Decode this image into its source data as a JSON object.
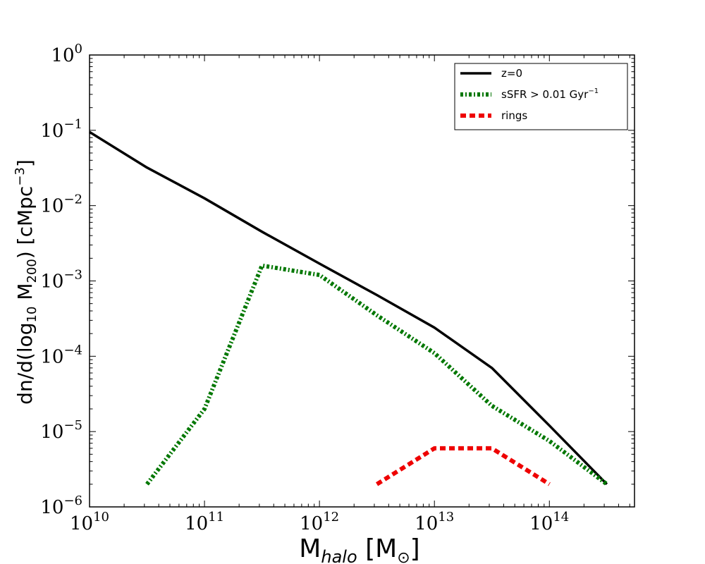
{
  "chart_data": {
    "type": "line",
    "title": "",
    "xscale": "log",
    "yscale": "log",
    "xlim": [
      10000000000.0,
      550000000000000.0
    ],
    "ylim": [
      1e-06,
      1
    ],
    "xlabel": {
      "main": "M",
      "sub": "halo",
      "rest": " [M",
      "sym": "⊙",
      "close": "]"
    },
    "ylabel": {
      "pre": "dn/d(log",
      "sub1": "10",
      "mid": " M",
      "sub2": "200",
      "post": ") [cMpc",
      "sup": "−3",
      "close": "]"
    },
    "xticks": [
      {
        "value": 10000000000.0,
        "base": "10",
        "exp": "10"
      },
      {
        "value": 100000000000.0,
        "base": "10",
        "exp": "11"
      },
      {
        "value": 1000000000000.0,
        "base": "10",
        "exp": "12"
      },
      {
        "value": 10000000000000.0,
        "base": "10",
        "exp": "13"
      },
      {
        "value": 100000000000000.0,
        "base": "10",
        "exp": "14"
      }
    ],
    "yticks": [
      {
        "value": 1e-06,
        "base": "10",
        "exp": "−6"
      },
      {
        "value": 1e-05,
        "base": "10",
        "exp": "−5"
      },
      {
        "value": 0.0001,
        "base": "10",
        "exp": "−4"
      },
      {
        "value": 0.001,
        "base": "10",
        "exp": "−3"
      },
      {
        "value": 0.01,
        "base": "10",
        "exp": "−2"
      },
      {
        "value": 0.1,
        "base": "10",
        "exp": "−1"
      },
      {
        "value": 1,
        "base": "10",
        "exp": "0"
      }
    ],
    "legend_position": "top-right",
    "series": [
      {
        "name": "z=0",
        "label": "z=0",
        "color": "#000000",
        "style": "solid",
        "x": [
          10000000000.0,
          31600000000.0,
          100000000000.0,
          316000000000.0,
          1000000000000.0,
          3160000000000.0,
          10000000000000.0,
          31600000000000.0,
          100000000000000.0,
          316000000000000.0
        ],
        "y": [
          0.095,
          0.032,
          0.0125,
          0.0045,
          0.0017,
          0.00065,
          0.00024,
          7e-05,
          1.2e-05,
          2e-06
        ]
      },
      {
        "name": "sSFR > 0.01 Gyr^-1",
        "label": "sSFR > 0.01 Gyr",
        "label_sup": "−1",
        "color": "#007700",
        "style": "dashdot",
        "x": [
          31600000000.0,
          100000000000.0,
          316000000000.0,
          1000000000000.0,
          3160000000000.0,
          10000000000000.0,
          31600000000000.0,
          100000000000000.0,
          316000000000000.0
        ],
        "y": [
          2e-06,
          2e-05,
          0.0016,
          0.0012,
          0.00035,
          0.00011,
          2.2e-05,
          7.5e-06,
          2e-06
        ]
      },
      {
        "name": "rings",
        "label": "rings",
        "color": "#ee0000",
        "style": "dashed",
        "x": [
          3160000000000.0,
          10000000000000.0,
          31600000000000.0,
          100000000000000.0
        ],
        "y": [
          2e-06,
          6e-06,
          6e-06,
          2e-06
        ]
      }
    ]
  }
}
